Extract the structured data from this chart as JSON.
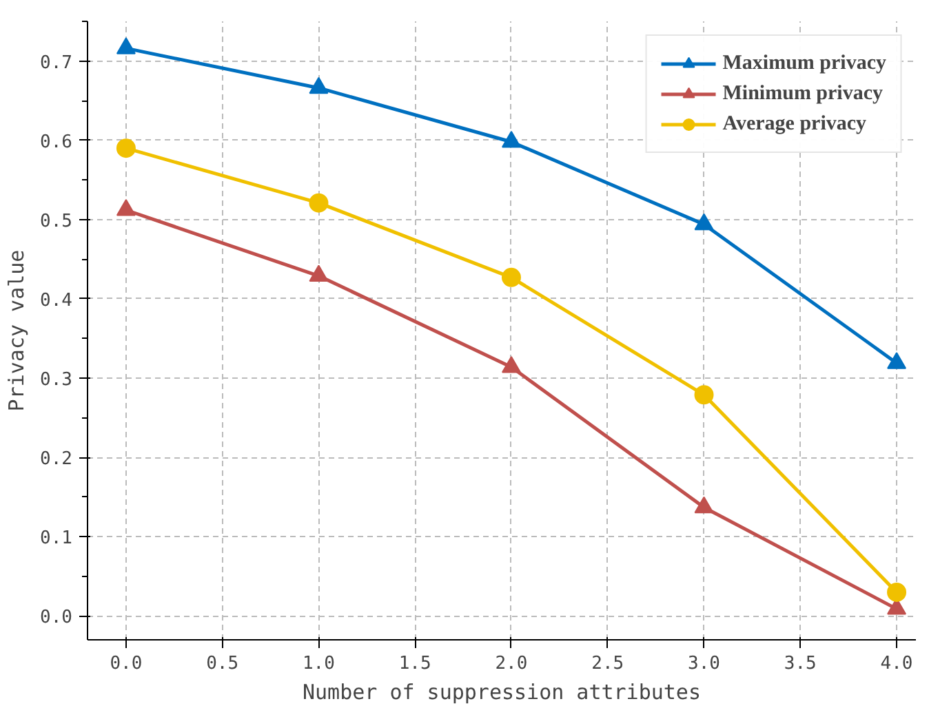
{
  "chart_data": {
    "type": "line",
    "xlabel": "Number of suppression attributes",
    "ylabel": "Privacy value",
    "x": [
      0,
      1,
      2,
      3,
      4
    ],
    "series": [
      {
        "name": "Maximum privacy",
        "color": "#0070c0",
        "marker": "triangle",
        "values": [
          0.716,
          0.666,
          0.598,
          0.494,
          0.319
        ]
      },
      {
        "name": "Minimum privacy",
        "color": "#c0504d",
        "marker": "triangle",
        "values": [
          0.512,
          0.429,
          0.314,
          0.137,
          0.009
        ]
      },
      {
        "name": "Average privacy",
        "color": "#f0c000",
        "marker": "circle",
        "values": [
          0.59,
          0.521,
          0.427,
          0.279,
          0.03
        ]
      }
    ],
    "xlim": [
      -0.2,
      4.1
    ],
    "ylim": [
      -0.03,
      0.75
    ],
    "xticks": [
      {
        "value": 0,
        "label": "0.0"
      },
      0.5,
      {
        "value": 1,
        "label": "1.0"
      },
      1.5,
      {
        "value": 2,
        "label": "2.0"
      },
      2.5,
      {
        "value": 3,
        "label": "3.0"
      },
      3.5,
      {
        "value": 4,
        "label": "4.0"
      }
    ],
    "yticks": [
      {
        "value": 0,
        "label": "0.0"
      },
      0.1,
      0.2,
      0.3,
      0.4,
      0.5,
      0.6,
      0.7
    ],
    "grid": true,
    "legend": "top right",
    "line_style": "solid"
  }
}
